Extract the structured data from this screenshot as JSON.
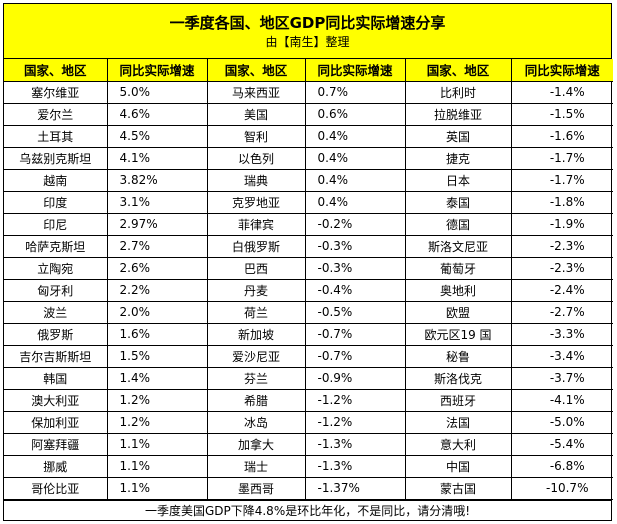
{
  "title": "一季度各国、地区GDP同比实际增速分享",
  "subtitle": "由【南生】整理",
  "headers": [
    "国家、地区",
    "同比实际增速",
    "国家、地区",
    "同比实际增速",
    "国家、地区",
    "同比实际增速"
  ],
  "rows": [
    [
      "塞尔维亚",
      "5.0%",
      "马来西亚",
      "0.7%",
      "比利时",
      "-1.4%"
    ],
    [
      "爱尔兰",
      "4.6%",
      "美国",
      "0.6%",
      "拉脱维亚",
      "-1.5%"
    ],
    [
      "土耳其",
      "4.5%",
      "智利",
      "0.4%",
      "英国",
      "-1.6%"
    ],
    [
      "乌兹别克斯坦",
      "4.1%",
      "以色列",
      "0.4%",
      "捷克",
      "-1.7%"
    ],
    [
      "越南",
      "3.82%",
      "瑞典",
      "0.4%",
      "日本",
      "-1.7%"
    ],
    [
      "印度",
      "3.1%",
      "克罗地亚",
      "0.4%",
      "泰国",
      "-1.8%"
    ],
    [
      "印尼",
      "2.97%",
      "菲律宾",
      "-0.2%",
      "德国",
      "-1.9%"
    ],
    [
      "哈萨克斯坦",
      "2.7%",
      "白俄罗斯",
      "-0.3%",
      "斯洛文尼亚",
      "-2.3%"
    ],
    [
      "立陶宛",
      "2.6%",
      "巴西",
      "-0.3%",
      "葡萄牙",
      "-2.3%"
    ],
    [
      "匈牙利",
      "2.2%",
      "丹麦",
      "-0.4%",
      "奥地利",
      "-2.4%"
    ],
    [
      "波兰",
      "2.0%",
      "荷兰",
      "-0.5%",
      "欧盟",
      "-2.7%"
    ],
    [
      "俄罗斯",
      "1.6%",
      "新加坡",
      "-0.7%",
      "欧元区19 国",
      "-3.3%"
    ],
    [
      "吉尔吉斯斯坦",
      "1.5%",
      "爱沙尼亚",
      "-0.7%",
      "秘鲁",
      "-3.4%"
    ],
    [
      "韩国",
      "1.4%",
      "芬兰",
      "-0.9%",
      "斯洛伐克",
      "-3.7%"
    ],
    [
      "澳大利亚",
      "1.2%",
      "希腊",
      "-1.2%",
      "西班牙",
      "-4.1%"
    ],
    [
      "保加利亚",
      "1.2%",
      "冰岛",
      "-1.2%",
      "法国",
      "-5.0%"
    ],
    [
      "阿塞拜疆",
      "1.1%",
      "加拿大",
      "-1.3%",
      "意大利",
      "-5.4%"
    ],
    [
      "挪威",
      "1.1%",
      "瑞士",
      "-1.3%",
      "中国",
      "-6.8%"
    ],
    [
      "哥伦比亚",
      "1.1%",
      "墨西哥",
      "-1.37%",
      "蒙古国",
      "-10.7%"
    ]
  ],
  "footer": "一季度美国GDP下降4.8%是环比年化，不是同比，请分清哦!"
}
